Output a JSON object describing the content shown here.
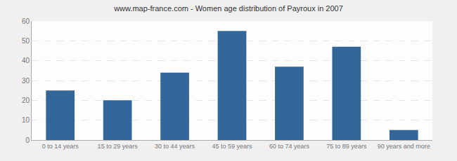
{
  "chart_data": {
    "type": "bar",
    "title": "www.map-france.com - Women age distribution of Payroux in 2007",
    "categories": [
      "0 to 14 years",
      "15 to 29 years",
      "30 to 44 years",
      "45 to 59 years",
      "60 to 74 years",
      "75 to 89 years",
      "90 years and more"
    ],
    "values": [
      25,
      20,
      34,
      55,
      37,
      47,
      5
    ],
    "color": "#336699",
    "ylim": [
      0,
      60
    ],
    "yticks": [
      0,
      10,
      20,
      30,
      40,
      50,
      60
    ],
    "grid": true
  }
}
